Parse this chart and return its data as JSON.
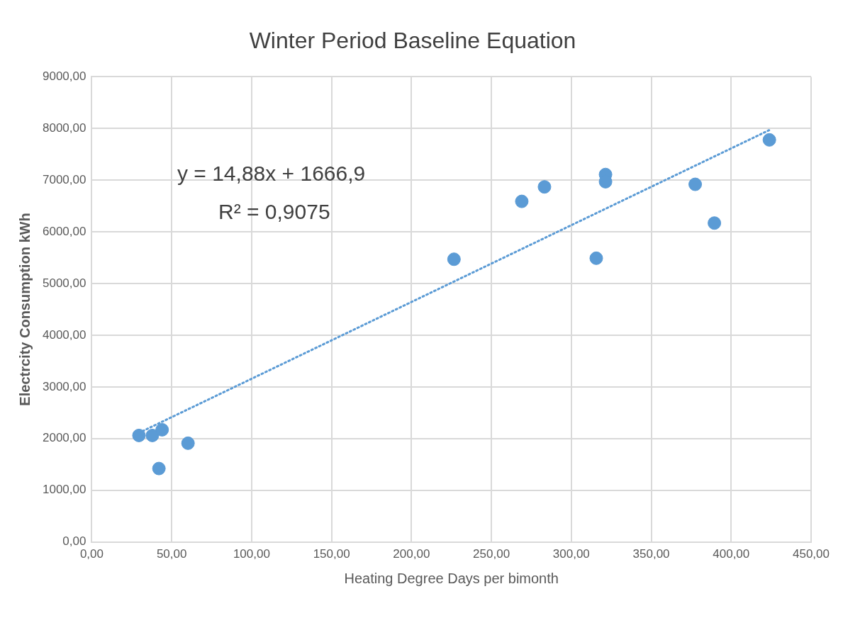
{
  "chart_data": {
    "type": "scatter",
    "title": "Winter Period Baseline Equation",
    "xlabel": "Heating Degree Days per bimonth",
    "ylabel": "Electrcity Consumption kWh",
    "series": [
      {
        "color": "#5b9bd5",
        "x": [
          29.5,
          37.9,
          44,
          60.2,
          42,
          226.6,
          269,
          283.2,
          321.4,
          321.4,
          315.6,
          377.5,
          389.5,
          423.9
        ],
        "values": [
          2060,
          2060,
          2170,
          1910,
          1420,
          5470,
          6590,
          6870,
          7110,
          6970,
          5490,
          6920,
          6170,
          7780
        ]
      },
      {
        "type": "line",
        "color": "#5b9bd5",
        "line_style": "dotted",
        "marker": "none",
        "x": [
          29.5,
          423.9
        ],
        "values": [
          2110,
          7970
        ]
      }
    ],
    "annotations": [
      "y = 14,88x + 1666,9",
      "R² = 0,9075"
    ],
    "xlim": [
      0,
      450
    ],
    "xticks": [
      {
        "value": 0,
        "label": "0,00"
      },
      {
        "value": 50,
        "label": "50,00"
      },
      {
        "value": 100,
        "label": "100,00"
      },
      {
        "value": 150,
        "label": "150,00"
      },
      {
        "value": 200,
        "label": "200,00"
      },
      {
        "value": 250,
        "label": "250,00"
      },
      {
        "value": 300,
        "label": "300,00"
      },
      {
        "value": 350,
        "label": "350,00"
      },
      {
        "value": 400,
        "label": "400,00"
      },
      {
        "value": 450,
        "label": "450,00"
      }
    ],
    "ylim": [
      0,
      9000
    ],
    "yticks": [
      {
        "value": 0,
        "label": "0,00"
      },
      {
        "value": 1000,
        "label": "1000,00"
      },
      {
        "value": 2000,
        "label": "2000,00"
      },
      {
        "value": 3000,
        "label": "3000,00"
      },
      {
        "value": 4000,
        "label": "4000,00"
      },
      {
        "value": 5000,
        "label": "5000,00"
      },
      {
        "value": 6000,
        "label": "6000,00"
      },
      {
        "value": 7000,
        "label": "7000,00"
      },
      {
        "value": 8000,
        "label": "8000,00"
      },
      {
        "value": 9000,
        "label": "9000,00"
      }
    ],
    "grid": true,
    "legend": false,
    "marker": "circle"
  }
}
